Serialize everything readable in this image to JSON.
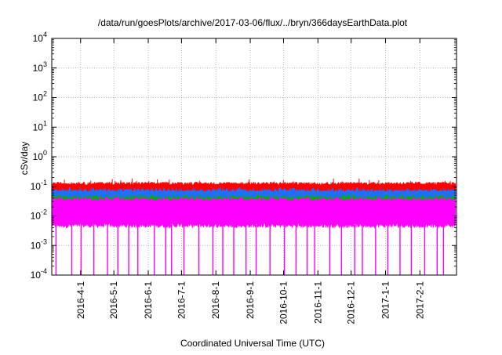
{
  "chart_data": {
    "type": "line",
    "title": "/data/run/goesPlots/archive/2017-03-06/flux/../bryn/366daysEarthData.plot",
    "xlabel": "Coordinated Universal Time (UTC)",
    "ylabel": "cSv/day",
    "yscale": "log",
    "ylim": [
      0.0001,
      10000
    ],
    "xlim": [
      "2016-03-06",
      "2017-03-06"
    ],
    "grid": true,
    "x_ticks": [
      "2016-4-1",
      "2016-5-1",
      "2016-6-1",
      "2016-7-1",
      "2016-8-1",
      "2016-9-1",
      "2016-10-1",
      "2016-11-1",
      "2016-12-1",
      "2017-1-1",
      "2017-2-1"
    ],
    "y_ticks": [
      {
        "value": 0.0001,
        "base": "10",
        "exp": "-4"
      },
      {
        "value": 0.001,
        "base": "10",
        "exp": "-3"
      },
      {
        "value": 0.01,
        "base": "10",
        "exp": "-2"
      },
      {
        "value": 0.1,
        "base": "10",
        "exp": "-1"
      },
      {
        "value": 1,
        "base": "10",
        "exp": "0"
      },
      {
        "value": 10,
        "base": "10",
        "exp": "1"
      },
      {
        "value": 100,
        "base": "10",
        "exp": "2"
      },
      {
        "value": 1000,
        "base": "10",
        "exp": "3"
      },
      {
        "value": 10000,
        "base": "10",
        "exp": "4"
      }
    ],
    "series": [
      {
        "color": "#ff0000",
        "typical": 0.1,
        "spread_low": 0.085,
        "spread_high": 0.12,
        "floor": null
      },
      {
        "color": "#1e6fff",
        "typical": 0.07,
        "spread_low": 0.05,
        "spread_high": 0.09,
        "floor": null
      },
      {
        "color": "#00b000",
        "typical": 0.05,
        "spread_low": 0.042,
        "spread_high": 0.06,
        "floor": null
      },
      {
        "color": "#ff00ff",
        "typical": 0.025,
        "spread_low": 0.005,
        "spread_high": 0.05,
        "floor": 0.0001
      }
    ]
  }
}
